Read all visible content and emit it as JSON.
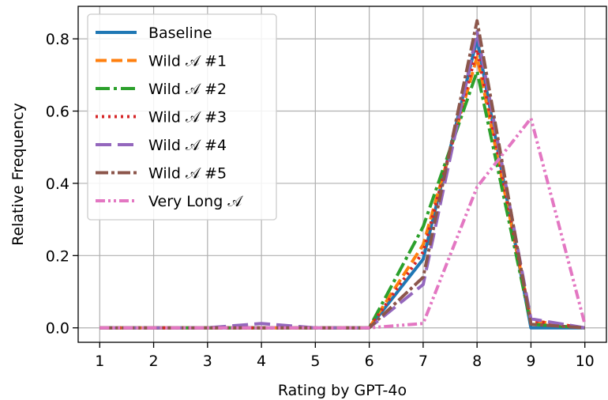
{
  "chart_data": {
    "type": "line",
    "xlabel": "Rating by GPT-4o",
    "ylabel": "Relative Frequency",
    "x": [
      1,
      2,
      3,
      4,
      5,
      6,
      7,
      8,
      9,
      10
    ],
    "xlim": [
      0.6,
      10.4
    ],
    "ylim": [
      -0.04,
      0.89
    ],
    "xticks": [
      "1",
      "2",
      "3",
      "4",
      "5",
      "6",
      "7",
      "8",
      "9",
      "10"
    ],
    "yticks": [
      "0.0",
      "0.2",
      "0.4",
      "0.6",
      "0.8"
    ],
    "grid": true,
    "legend_position": "upper-left",
    "series": [
      {
        "name": "Baseline",
        "color": "#1f77b4",
        "dash": "solid",
        "values": [
          0,
          0,
          0,
          0,
          0,
          0,
          0.19,
          0.8,
          0,
          0
        ]
      },
      {
        "name": "Wild 𝒜 #1",
        "color": "#ff7f0e",
        "dash": "dashed",
        "values": [
          0,
          0,
          0,
          0,
          0,
          0,
          0.23,
          0.75,
          0.02,
          0
        ]
      },
      {
        "name": "Wild 𝒜 #2",
        "color": "#2ca02c",
        "dash": "dashdot",
        "values": [
          0,
          0,
          0,
          0,
          0,
          0,
          0.28,
          0.71,
          0.01,
          0
        ]
      },
      {
        "name": "Wild 𝒜 #3",
        "color": "#d62728",
        "dash": "dotted",
        "values": [
          0,
          0,
          0,
          0,
          0,
          0,
          0.21,
          0.77,
          0.02,
          0
        ]
      },
      {
        "name": "Wild 𝒜 #4",
        "color": "#9467bd",
        "dash": "longdash",
        "values": [
          0,
          0,
          0,
          0.012,
          0,
          0,
          0.12,
          0.82,
          0.025,
          0
        ]
      },
      {
        "name": "Wild 𝒜 #5",
        "color": "#8c564b",
        "dash": "dashdot2",
        "values": [
          0,
          0,
          0,
          0,
          0,
          0,
          0.14,
          0.85,
          0.01,
          0
        ]
      },
      {
        "name": "Very Long 𝒜",
        "color": "#e377c2",
        "dash": "dashdotdot",
        "values": [
          0,
          0,
          0,
          0,
          0,
          0,
          0.012,
          0.39,
          0.58,
          0.01
        ]
      }
    ]
  }
}
